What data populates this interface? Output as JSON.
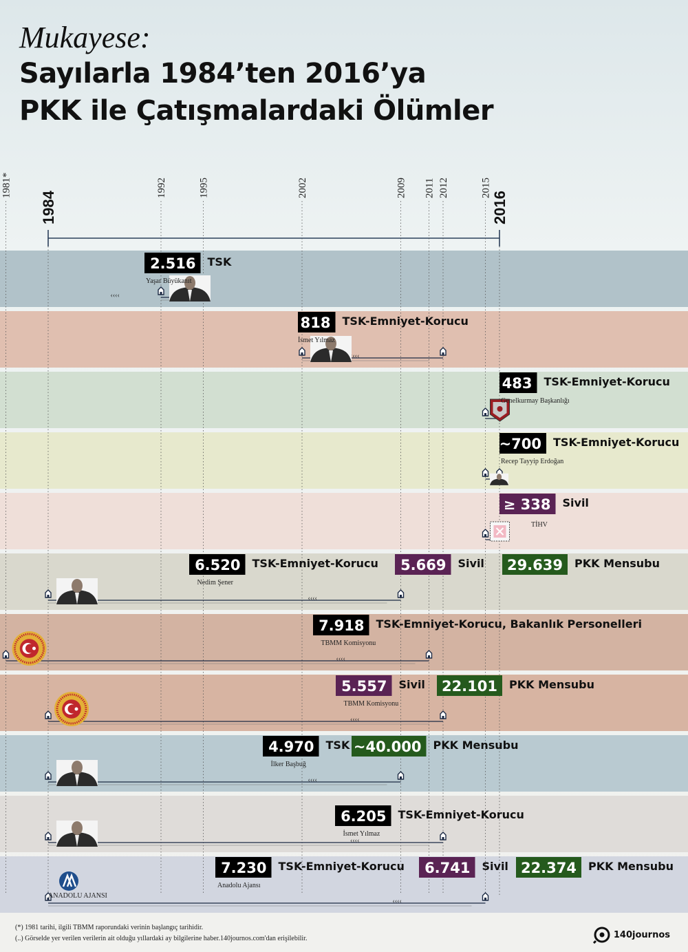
{
  "title": {
    "line1": "Mukayese:",
    "line2": "Sayılarla 1984’ten 2016’ya",
    "line3": "PKK ile Çatışmalardaki Ölümler"
  },
  "chart_data": {
    "type": "timeline",
    "axis": {
      "start": 1984,
      "end": 2016,
      "main_labels": [
        "1984",
        "2016"
      ],
      "tick_years": [
        "1981*",
        "1992",
        "1995",
        "2002",
        "2009",
        "2011",
        "2012",
        "2015"
      ]
    },
    "rows": [
      {
        "band_color": "#b1c2c9",
        "start": 1992,
        "end": 1995,
        "source": "Yaşar Büyükanıt",
        "source_icon": "portrait",
        "values": [
          {
            "value": "2.516",
            "label": "TSK",
            "box": "#000000"
          }
        ]
      },
      {
        "band_color": "#e0bfb0",
        "start": 2002,
        "end": 2012,
        "source": "İsmet Yılmaz",
        "source_icon": "portrait",
        "values": [
          {
            "value": "818",
            "label": "TSK-Emniyet-Korucu",
            "box": "#000000"
          }
        ]
      },
      {
        "band_color": "#d2dfd1",
        "start": 2015,
        "end": 2016,
        "source": "Genelkurmay Başkanlığı",
        "source_icon": "emblem",
        "values": [
          {
            "value": "483",
            "label": "TSK-Emniyet-Korucu",
            "box": "#000000"
          }
        ]
      },
      {
        "band_color": "#e7e9cd",
        "start": 2015,
        "end": 2016,
        "source": "Recep Tayyip Erdoğan",
        "source_icon": "portrait",
        "values": [
          {
            "value": "~700",
            "label": "TSK-Emniyet-Korucu",
            "box": "#000000"
          }
        ]
      },
      {
        "band_color": "#efdfd9",
        "start": 2015,
        "end": 2016,
        "source": "TİHV",
        "source_icon": "stamp",
        "values": [
          {
            "value": "≥ 338",
            "label": "Sivil",
            "box": "#5a2354"
          }
        ]
      },
      {
        "band_color": "#d9d8cd",
        "start": 1984,
        "end": 2009,
        "source": "Nedim Şener",
        "source_icon": "portrait",
        "values": [
          {
            "value": "6.520",
            "label": "TSK-Emniyet-Korucu",
            "box": "#000000"
          },
          {
            "value": "5.669",
            "label": "Sivil",
            "box": "#5a2354"
          },
          {
            "value": "29.639",
            "label": "PKK Mensubu",
            "box": "#255a1d"
          }
        ]
      },
      {
        "band_color": "#d3b3a2",
        "start": 1981,
        "end": 2011,
        "source": "TBMM Komisyonu",
        "source_icon": "seal",
        "values": [
          {
            "value": "7.918",
            "label": "TSK-Emniyet-Korucu, Bakanlık Personelleri",
            "box": "#000000"
          }
        ]
      },
      {
        "band_color": "#d7b4a2",
        "start": 1984,
        "end": 2012,
        "source": "TBMM Komisyonu",
        "source_icon": "seal",
        "values": [
          {
            "value": "5.557",
            "label": "Sivil",
            "box": "#5a2354"
          },
          {
            "value": "22.101",
            "label": "PKK Mensubu",
            "box": "#255a1d"
          }
        ]
      },
      {
        "band_color": "#b9cad1",
        "start": 1984,
        "end": 2009,
        "source": "İlker Başbuğ",
        "source_icon": "portrait",
        "values": [
          {
            "value": "4.970",
            "label": "TSK",
            "box": "#000000"
          },
          {
            "value": "~40.000",
            "label": "PKK Mensubu",
            "box": "#255a1d"
          }
        ]
      },
      {
        "band_color": "#dfdcd9",
        "start": 1984,
        "end": 2012,
        "source": "İsmet Yılmaz",
        "source_icon": "portrait",
        "values": [
          {
            "value": "6.205",
            "label": "TSK-Emniyet-Korucu",
            "box": "#000000"
          }
        ]
      },
      {
        "band_color": "#d2d6e0",
        "start": 1984,
        "end": 2015,
        "source": "Anadolu Ajansı",
        "source_icon": "logo",
        "logo_text": "ANADOLU AJANSI",
        "values": [
          {
            "value": "7.230",
            "label": "TSK-Emniyet-Korucu",
            "box": "#000000"
          },
          {
            "value": "6.741",
            "label": "Sivil",
            "box": "#5a2354"
          },
          {
            "value": "22.374",
            "label": "PKK Mensubu",
            "box": "#255a1d"
          }
        ]
      }
    ]
  },
  "footnotes": [
    "(*) 1981 tarihi, ilgili TBMM raporundaki verinin başlangıç tarihidir.",
    "(..) Görselde yer verilen verilerin ait olduğu yıllardaki ay bilgilerine haber.140journos.com'dan erişilebilir."
  ],
  "brand": "140journos"
}
